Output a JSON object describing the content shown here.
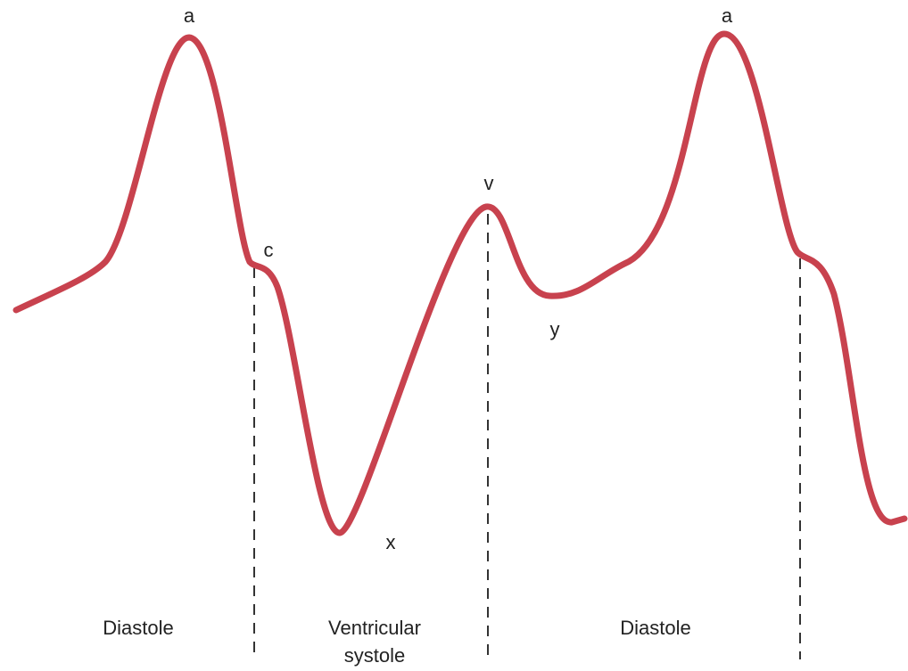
{
  "waves": [
    "a",
    "c",
    "x",
    "v",
    "y",
    "a"
  ],
  "phases": [
    {
      "lines": [
        "Diastole"
      ]
    },
    {
      "lines": [
        "Ventricular",
        "systole"
      ]
    },
    {
      "lines": [
        "Diastole"
      ]
    }
  ]
}
